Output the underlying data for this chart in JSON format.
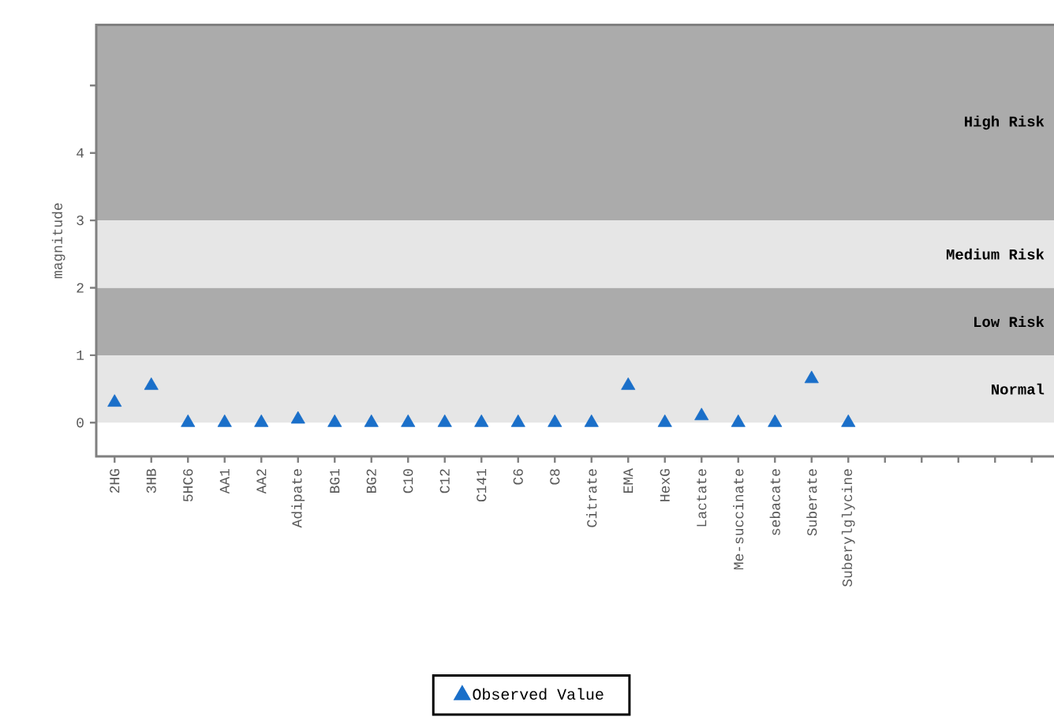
{
  "chart_data": {
    "type": "scatter",
    "ylabel": "magnitude",
    "categories": [
      "2HG",
      "3HB",
      "5HC6",
      "AA1",
      "AA2",
      "Adipate",
      "BG1",
      "BG2",
      "C10",
      "C12",
      "C141",
      "C6",
      "C8",
      "Citrate",
      "EMA",
      "HexG",
      "Lactate",
      "Me-succinate",
      "sebacate",
      "Suberate",
      "Suberylglycine",
      null,
      null,
      null,
      null,
      null
    ],
    "series": [
      {
        "name": "Observed Value",
        "color": "#1a6fc9",
        "values": [
          0.3,
          0.55,
          0,
          0,
          0,
          0.05,
          0,
          0,
          0,
          0,
          0,
          0,
          0,
          0,
          0.55,
          0,
          0.1,
          0,
          0,
          0.65,
          0,
          null,
          null,
          null,
          null,
          null
        ]
      }
    ],
    "ylim": [
      -0.5,
      5.9
    ],
    "yticks": [
      0,
      1,
      2,
      3,
      4,
      {
        "value": 5,
        "label": null
      }
    ],
    "bands": [
      {
        "axis": "y",
        "from": 0,
        "to": 1,
        "label": "Normal",
        "color": "#e6e6e6"
      },
      {
        "axis": "y",
        "from": 1,
        "to": 2,
        "label": "Low Risk",
        "color": "#ababab"
      },
      {
        "axis": "y",
        "from": 2,
        "to": 3,
        "label": "Medium Risk",
        "color": "#e6e6e6"
      },
      {
        "axis": "y",
        "from": 3,
        "to": 5.9,
        "label": "High Risk",
        "color": "#ababab"
      }
    ],
    "marker": "triangle",
    "legend": "bottom",
    "grid": false
  }
}
